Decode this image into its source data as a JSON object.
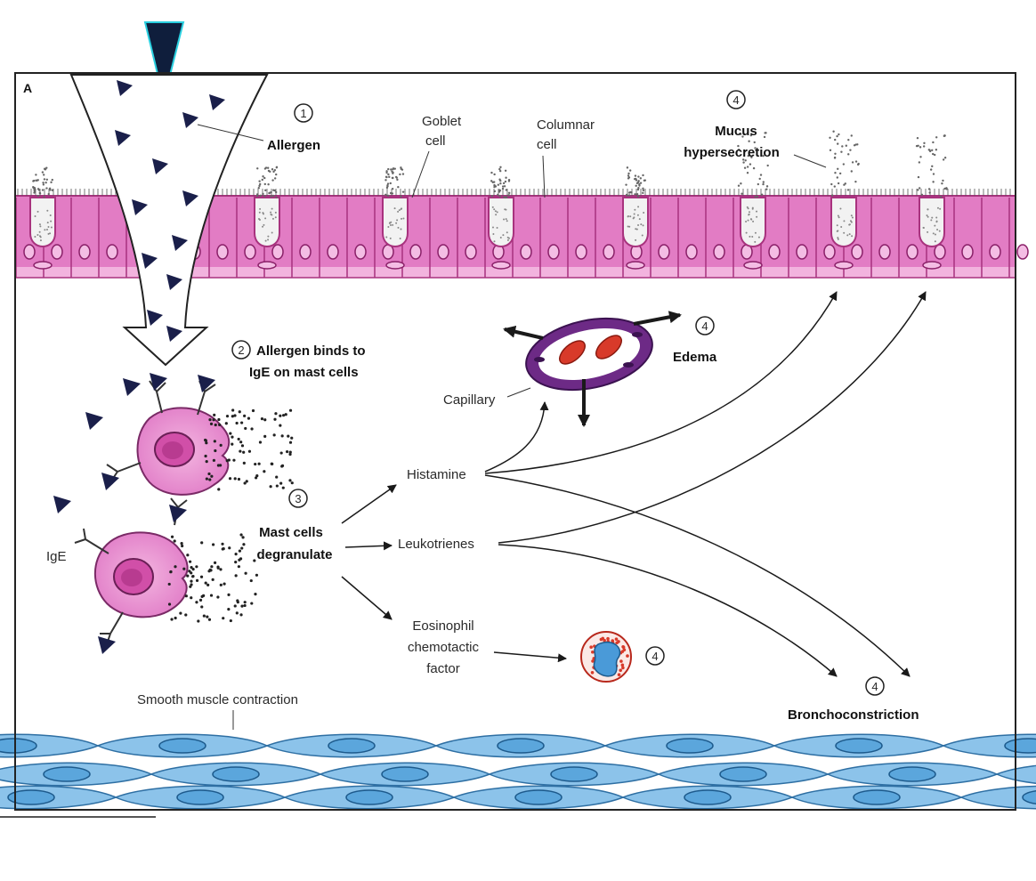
{
  "panel_letter": "A",
  "labels": {
    "allergen": "Allergen",
    "goblet_line1": "Goblet",
    "goblet_line2": "cell",
    "columnar_line1": "Columnar",
    "columnar_line2": "cell",
    "mucus_line1": "Mucus",
    "mucus_line2": "hypersecretion",
    "binds_line1": "Allergen binds to",
    "binds_line2": "IgE on mast cells",
    "capillary": "Capillary",
    "edema": "Edema",
    "ige": "IgE",
    "degranulate_line1": "Mast cells",
    "degranulate_line2": "degranulate",
    "histamine": "Histamine",
    "leukotrienes": "Leukotrienes",
    "ecf_line1": "Eosinophil",
    "ecf_line2": "chemotactic",
    "ecf_line3": "factor",
    "smooth_muscle": "Smooth muscle contraction",
    "bronchoconstriction": "Bronchoconstriction"
  },
  "steps": {
    "step1": "1",
    "step2": "2",
    "step3": "3",
    "step4": "4"
  },
  "colors": {
    "epithelium": "#e27cc4",
    "epithelium_dark": "#a8327e",
    "muscle": "#8cc3ea",
    "muscle_dark": "#2e6fa3",
    "allergen": "#1a1f4a",
    "blood": "#d83a2a"
  }
}
